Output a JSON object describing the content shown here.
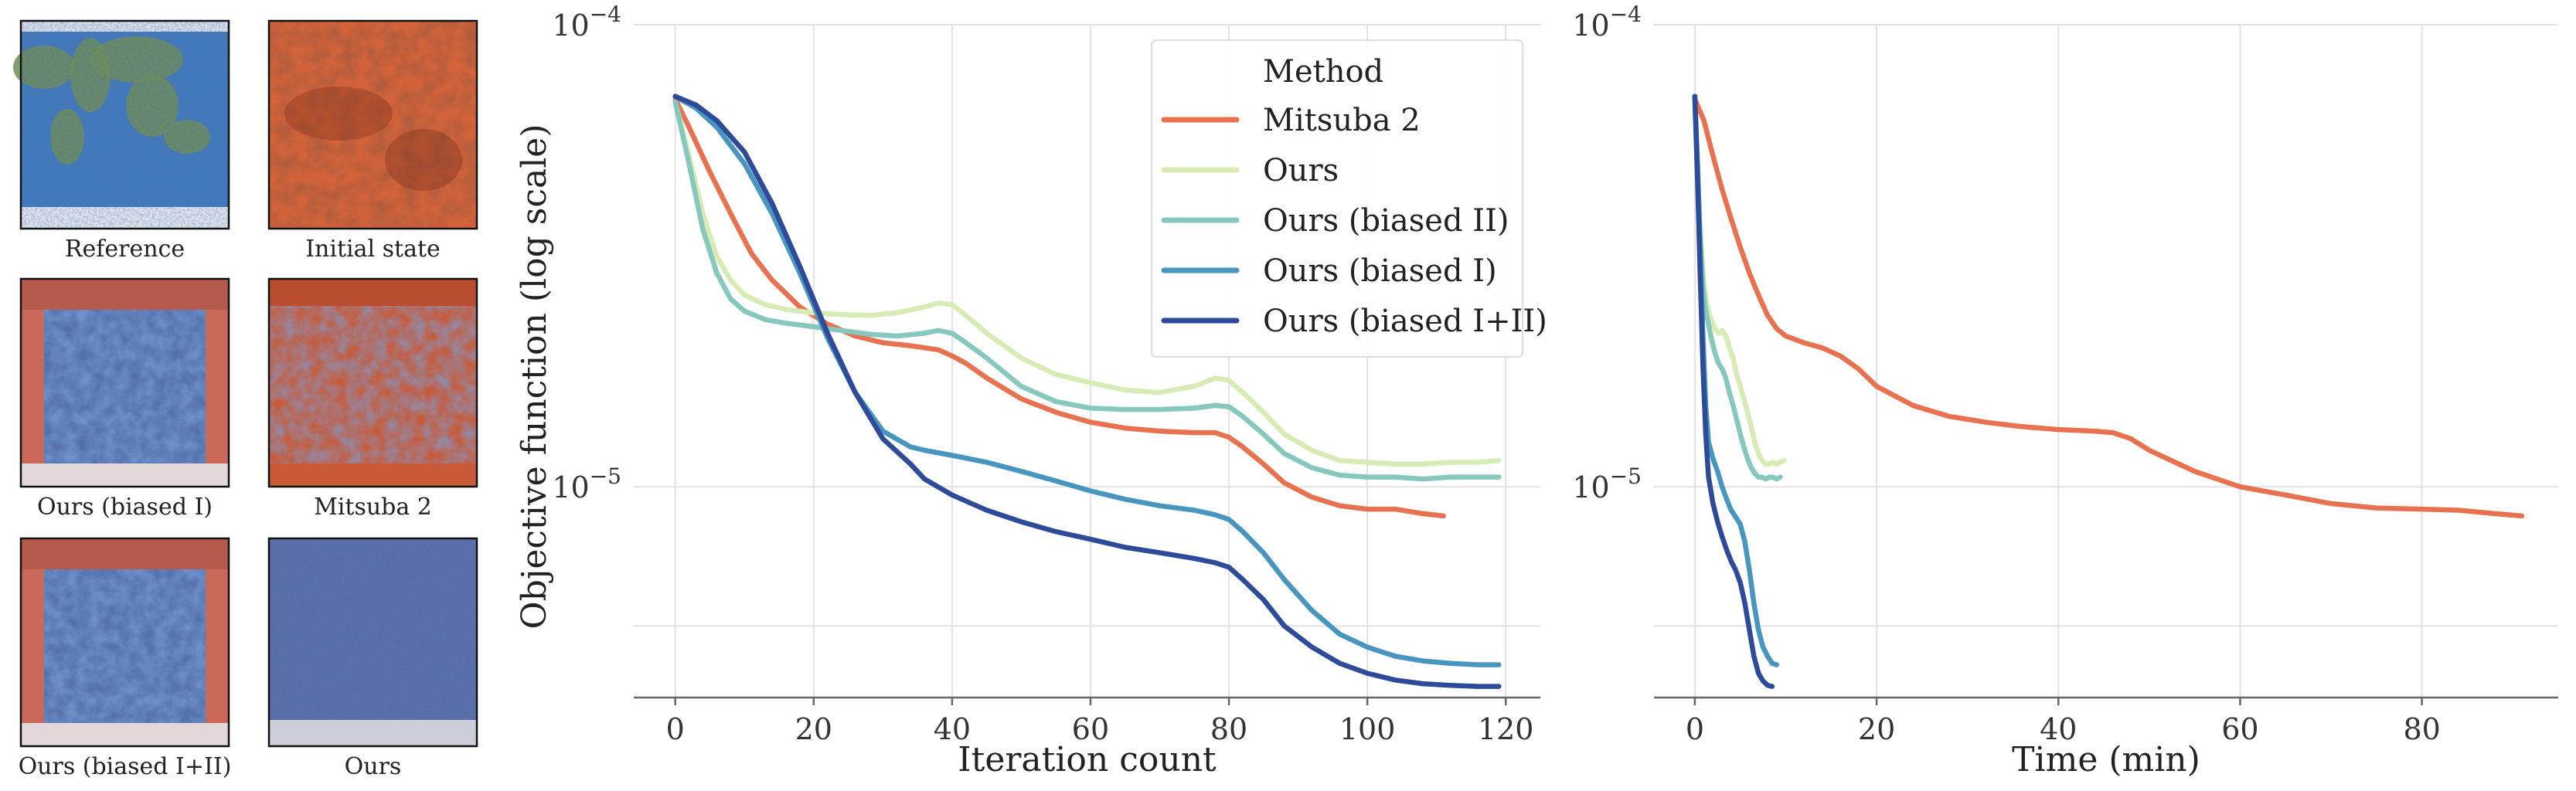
{
  "thumbnails": [
    {
      "label": "Reference",
      "kind": "earth"
    },
    {
      "label": "Initial state",
      "kind": "mars"
    },
    {
      "label": "Ours (biased I)",
      "kind": "mixed-blue"
    },
    {
      "label": "Mitsuba 2",
      "kind": "mixed-red"
    },
    {
      "label": "Ours (biased I+II)",
      "kind": "mixed-blue"
    },
    {
      "label": "Ours",
      "kind": "noisy"
    }
  ],
  "chart_data": [
    {
      "type": "line",
      "xlabel": "Iteration count",
      "ylabel": "Objective function (log scale)",
      "yscale": "log",
      "xlim": [
        -6,
        125
      ],
      "ylim": [
        3.5e-06,
        0.0001
      ],
      "xticks": [
        0,
        20,
        40,
        60,
        80,
        100,
        120
      ],
      "yticks": [
        {
          "value": 0.0001,
          "base": "10",
          "exp": "−4"
        },
        {
          "value": 1e-05,
          "base": "10",
          "exp": "−5"
        }
      ],
      "minor_grid_y": [
        5e-06
      ],
      "legend": {
        "title": "Method",
        "position": "top-right"
      },
      "series": [
        {
          "name": "Mitsuba 2",
          "color": "#e8714f",
          "x": [
            0,
            2,
            5,
            8,
            11,
            14,
            18,
            22,
            26,
            30,
            34,
            38,
            40,
            42,
            45,
            50,
            55,
            60,
            65,
            70,
            75,
            78,
            80,
            82,
            85,
            88,
            92,
            96,
            100,
            104,
            108,
            111
          ],
          "y": [
            6.9e-05,
            6e-05,
            4.8e-05,
            3.9e-05,
            3.2e-05,
            2.8e-05,
            2.45e-05,
            2.25e-05,
            2.12e-05,
            2.05e-05,
            2.02e-05,
            1.98e-05,
            1.92e-05,
            1.85e-05,
            1.72e-05,
            1.55e-05,
            1.45e-05,
            1.38e-05,
            1.34e-05,
            1.32e-05,
            1.31e-05,
            1.31e-05,
            1.28e-05,
            1.22e-05,
            1.12e-05,
            1.02e-05,
            9.5e-06,
            9.1e-06,
            8.95e-06,
            8.95e-06,
            8.75e-06,
            8.65e-06
          ]
        },
        {
          "name": "Ours",
          "color": "#d7ecb5",
          "x": [
            0,
            2,
            4,
            6,
            8,
            10,
            13,
            16,
            20,
            24,
            28,
            32,
            36,
            38,
            40,
            42,
            45,
            50,
            55,
            60,
            65,
            70,
            75,
            78,
            80,
            82,
            85,
            88,
            92,
            96,
            100,
            104,
            108,
            112,
            116,
            119
          ],
          "y": [
            6.8e-05,
            5.2e-05,
            3.9e-05,
            3.15e-05,
            2.8e-05,
            2.6e-05,
            2.48e-05,
            2.42e-05,
            2.38e-05,
            2.36e-05,
            2.35e-05,
            2.38e-05,
            2.45e-05,
            2.5e-05,
            2.48e-05,
            2.35e-05,
            2.15e-05,
            1.9e-05,
            1.75e-05,
            1.68e-05,
            1.62e-05,
            1.6e-05,
            1.65e-05,
            1.72e-05,
            1.7e-05,
            1.6e-05,
            1.45e-05,
            1.3e-05,
            1.2e-05,
            1.14e-05,
            1.13e-05,
            1.12e-05,
            1.12e-05,
            1.13e-05,
            1.13e-05,
            1.14e-05
          ]
        },
        {
          "name": "Ours (biased II)",
          "color": "#86c8bd",
          "x": [
            0,
            2,
            4,
            6,
            8,
            10,
            13,
            16,
            20,
            24,
            28,
            32,
            36,
            38,
            40,
            42,
            45,
            50,
            55,
            60,
            65,
            70,
            75,
            78,
            80,
            82,
            85,
            88,
            92,
            96,
            100,
            104,
            108,
            112,
            116,
            119
          ],
          "y": [
            6.8e-05,
            5e-05,
            3.6e-05,
            2.9e-05,
            2.55e-05,
            2.4e-05,
            2.3e-05,
            2.26e-05,
            2.22e-05,
            2.18e-05,
            2.14e-05,
            2.12e-05,
            2.15e-05,
            2.18e-05,
            2.15e-05,
            2.05e-05,
            1.9e-05,
            1.65e-05,
            1.53e-05,
            1.48e-05,
            1.47e-05,
            1.47e-05,
            1.48e-05,
            1.5e-05,
            1.49e-05,
            1.42e-05,
            1.3e-05,
            1.18e-05,
            1.1e-05,
            1.06e-05,
            1.05e-05,
            1.05e-05,
            1.04e-05,
            1.05e-05,
            1.05e-05,
            1.05e-05
          ]
        },
        {
          "name": "Ours (biased I)",
          "color": "#4896bf",
          "x": [
            0,
            3,
            6,
            10,
            14,
            18,
            22,
            26,
            30,
            34,
            36,
            40,
            45,
            50,
            55,
            60,
            65,
            70,
            75,
            78,
            80,
            82,
            85,
            88,
            92,
            96,
            100,
            104,
            108,
            112,
            116,
            119
          ],
          "y": [
            7e-05,
            6.6e-05,
            6e-05,
            5e-05,
            3.9e-05,
            2.9e-05,
            2.1e-05,
            1.6e-05,
            1.32e-05,
            1.22e-05,
            1.2e-05,
            1.17e-05,
            1.13e-05,
            1.08e-05,
            1.03e-05,
            9.8e-06,
            9.4e-06,
            9.1e-06,
            8.9e-06,
            8.7e-06,
            8.5e-06,
            8e-06,
            7.2e-06,
            6.3e-06,
            5.4e-06,
            4.8e-06,
            4.5e-06,
            4.3e-06,
            4.2e-06,
            4.15e-06,
            4.12e-06,
            4.12e-06
          ]
        },
        {
          "name": "Ours (biased I+II)",
          "color": "#2d4b98",
          "x": [
            0,
            3,
            6,
            10,
            14,
            18,
            22,
            26,
            30,
            34,
            36,
            40,
            45,
            50,
            55,
            60,
            65,
            70,
            75,
            78,
            80,
            82,
            85,
            88,
            92,
            96,
            100,
            104,
            108,
            112,
            116,
            119
          ],
          "y": [
            7e-05,
            6.7e-05,
            6.2e-05,
            5.3e-05,
            4.1e-05,
            3e-05,
            2.15e-05,
            1.6e-05,
            1.27e-05,
            1.12e-05,
            1.04e-05,
            9.6e-06,
            8.9e-06,
            8.4e-06,
            8e-06,
            7.7e-06,
            7.4e-06,
            7.2e-06,
            7e-06,
            6.85e-06,
            6.7e-06,
            6.3e-06,
            5.7e-06,
            5e-06,
            4.5e-06,
            4.15e-06,
            3.95e-06,
            3.82e-06,
            3.75e-06,
            3.72e-06,
            3.7e-06,
            3.7e-06
          ]
        }
      ]
    },
    {
      "type": "line",
      "xlabel": "Time (min)",
      "ylabel": "",
      "yscale": "log",
      "xlim": [
        -4.5,
        95
      ],
      "ylim": [
        3.5e-06,
        0.0001
      ],
      "xticks": [
        0,
        20,
        40,
        60,
        80
      ],
      "yticks": [
        {
          "value": 0.0001,
          "base": "10",
          "exp": "−4"
        },
        {
          "value": 1e-05,
          "base": "10",
          "exp": "−5"
        }
      ],
      "minor_grid_y": [
        5e-06
      ],
      "series": [
        {
          "name": "Mitsuba 2",
          "color": "#e8714f",
          "x": [
            0,
            1,
            2,
            3,
            4,
            5,
            6,
            7,
            8,
            9,
            10,
            12,
            14,
            16,
            18,
            20,
            24,
            28,
            32,
            36,
            40,
            44,
            46,
            48,
            50,
            55,
            60,
            65,
            70,
            75,
            80,
            84,
            88,
            91
          ],
          "y": [
            6.9e-05,
            6.2e-05,
            5.2e-05,
            4.4e-05,
            3.8e-05,
            3.3e-05,
            2.9e-05,
            2.6e-05,
            2.35e-05,
            2.2e-05,
            2.12e-05,
            2.05e-05,
            2e-05,
            1.92e-05,
            1.8e-05,
            1.65e-05,
            1.5e-05,
            1.42e-05,
            1.38e-05,
            1.35e-05,
            1.33e-05,
            1.32e-05,
            1.31e-05,
            1.27e-05,
            1.2e-05,
            1.08e-05,
            1e-05,
            9.6e-06,
            9.2e-06,
            9e-06,
            8.95e-06,
            8.9e-06,
            8.75e-06,
            8.65e-06
          ]
        },
        {
          "name": "Ours",
          "color": "#d7ecb5",
          "x": [
            0,
            0.3,
            0.6,
            0.9,
            1.2,
            1.5,
            1.8,
            2.2,
            2.6,
            3.0,
            3.4,
            3.8,
            4.2,
            4.6,
            5.0,
            5.4,
            5.8,
            6.2,
            6.6,
            7.0,
            7.4,
            7.8,
            8.2,
            8.6,
            9.0,
            9.4,
            9.8
          ],
          "y": [
            6.8e-05,
            5e-05,
            3.6e-05,
            2.9e-05,
            2.55e-05,
            2.4e-05,
            2.3e-05,
            2.2e-05,
            2.15e-05,
            2.18e-05,
            2.12e-05,
            2e-05,
            1.9e-05,
            1.75e-05,
            1.65e-05,
            1.55e-05,
            1.45e-05,
            1.35e-05,
            1.25e-05,
            1.18e-05,
            1.14e-05,
            1.12e-05,
            1.12e-05,
            1.13e-05,
            1.12e-05,
            1.13e-05,
            1.14e-05
          ]
        },
        {
          "name": "Ours (biased II)",
          "color": "#86c8bd",
          "x": [
            0,
            0.3,
            0.6,
            0.9,
            1.2,
            1.5,
            1.8,
            2.2,
            2.6,
            3.0,
            3.4,
            3.8,
            4.2,
            4.6,
            5.0,
            5.4,
            5.8,
            6.2,
            6.6,
            7.0,
            7.4,
            7.8,
            8.2,
            8.6,
            9.0,
            9.4
          ],
          "y": [
            6.8e-05,
            4.8e-05,
            3.4e-05,
            2.7e-05,
            2.4e-05,
            2.25e-05,
            2.1e-05,
            1.95e-05,
            1.85e-05,
            1.8e-05,
            1.72e-05,
            1.6e-05,
            1.5e-05,
            1.4e-05,
            1.3e-05,
            1.22e-05,
            1.15e-05,
            1.1e-05,
            1.07e-05,
            1.05e-05,
            1.05e-05,
            1.04e-05,
            1.05e-05,
            1.05e-05,
            1.04e-05,
            1.05e-05
          ]
        },
        {
          "name": "Ours (biased I)",
          "color": "#4896bf",
          "x": [
            0,
            0.3,
            0.6,
            0.9,
            1.2,
            1.5,
            2.0,
            2.5,
            3.0,
            3.5,
            4.0,
            4.5,
            5.0,
            5.5,
            6.0,
            6.5,
            7.0,
            7.5,
            8.0,
            8.5,
            9.0
          ],
          "y": [
            7e-05,
            5e-05,
            3.2e-05,
            2.1e-05,
            1.5e-05,
            1.25e-05,
            1.15e-05,
            1.08e-05,
            1e-05,
            9.4e-06,
            8.9e-06,
            8.6e-06,
            8.3e-06,
            7.6e-06,
            6.6e-06,
            5.6e-06,
            4.9e-06,
            4.5e-06,
            4.3e-06,
            4.15e-06,
            4.12e-06
          ]
        },
        {
          "name": "Ours (biased I+II)",
          "color": "#2d4b98",
          "x": [
            0,
            0.3,
            0.6,
            0.9,
            1.2,
            1.5,
            2.0,
            2.5,
            3.0,
            3.5,
            4.0,
            4.5,
            5.0,
            5.5,
            6.0,
            6.5,
            7.0,
            7.5,
            8.0,
            8.5
          ],
          "y": [
            7e-05,
            4.6e-05,
            2.8e-05,
            1.8e-05,
            1.3e-05,
            1.05e-05,
            9.2e-06,
            8.4e-06,
            7.8e-06,
            7.3e-06,
            6.9e-06,
            6.6e-06,
            6.2e-06,
            5.6e-06,
            4.9e-06,
            4.3e-06,
            3.95e-06,
            3.8e-06,
            3.72e-06,
            3.7e-06
          ]
        }
      ]
    }
  ]
}
